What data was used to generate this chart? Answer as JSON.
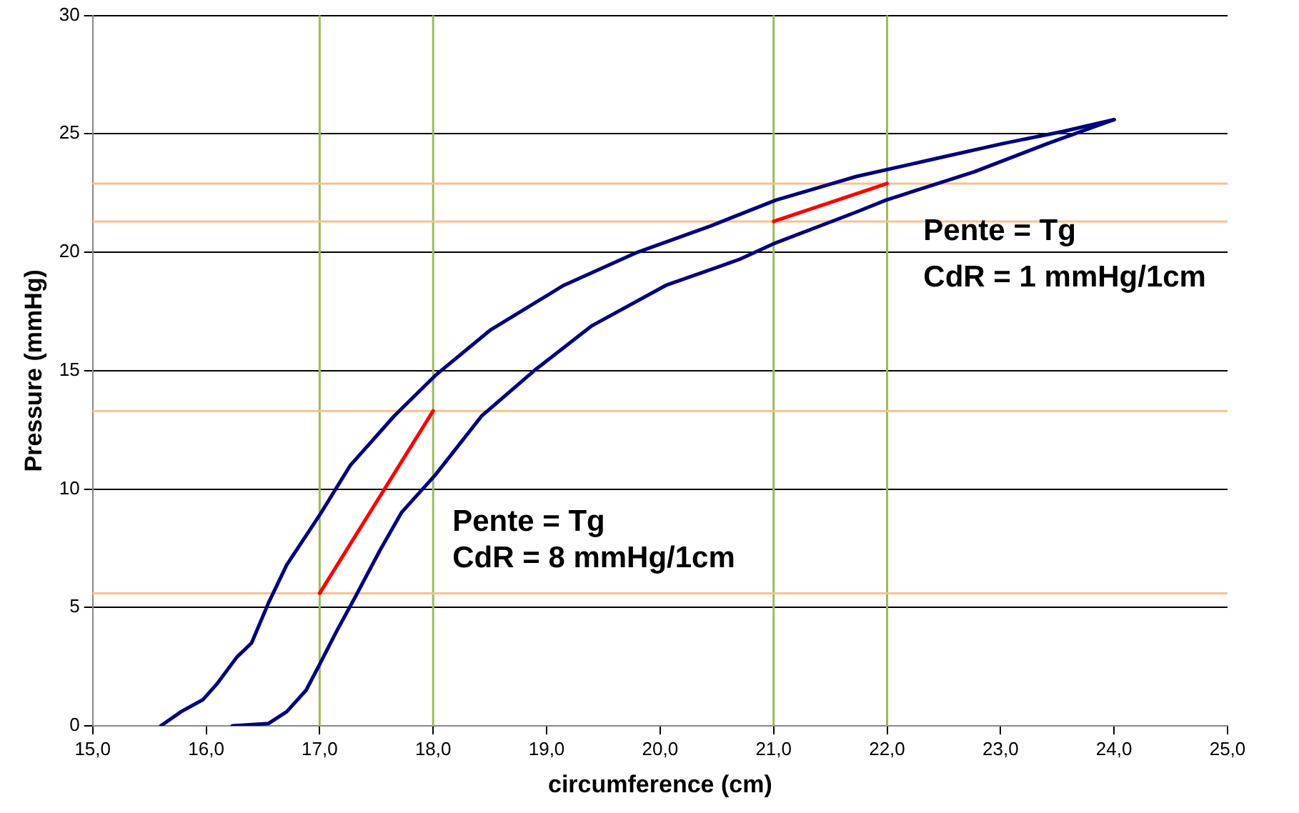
{
  "chart_data": {
    "type": "line",
    "xlabel": "circumference (cm)",
    "ylabel": "Pressure (mmHg)",
    "xlim": [
      15,
      25
    ],
    "xticks": [
      {
        "value": 15,
        "label": "15,0"
      },
      {
        "value": 16,
        "label": "16,0"
      },
      {
        "value": 17,
        "label": "17,0"
      },
      {
        "value": 18,
        "label": "18,0"
      },
      {
        "value": 19,
        "label": "19,0"
      },
      {
        "value": 20,
        "label": "20,0"
      },
      {
        "value": 21,
        "label": "21,0"
      },
      {
        "value": 22,
        "label": "22,0"
      },
      {
        "value": 23,
        "label": "23,0"
      },
      {
        "value": 24,
        "label": "24,0"
      },
      {
        "value": 25,
        "label": "25,0"
      }
    ],
    "ylim": [
      0,
      30
    ],
    "yticks": [
      0,
      5,
      10,
      15,
      20,
      25,
      30
    ],
    "grid": "y",
    "legend": false,
    "marker": "none",
    "series": [
      {
        "color": "#000080",
        "x": [
          15.6,
          15.78,
          15.97,
          16.1,
          16.27,
          16.4,
          16.55,
          16.71,
          17.0,
          17.27,
          17.66,
          18.02,
          18.5,
          19.15,
          19.8,
          20.44,
          21.02,
          21.73,
          22.38,
          23.03,
          23.55,
          24.0
        ],
        "values": [
          0,
          0.6,
          1.1,
          1.8,
          2.9,
          3.5,
          5.2,
          6.8,
          8.9,
          11.0,
          13.1,
          14.8,
          16.7,
          18.6,
          20.0,
          21.1,
          22.2,
          23.2,
          23.9,
          24.6,
          25.1,
          25.6
        ]
      },
      {
        "color": "#000080",
        "x": [
          16.23,
          16.55,
          16.71,
          16.88,
          17.0,
          17.15,
          17.32,
          17.53,
          17.72,
          18.02,
          18.43,
          18.89,
          19.4,
          20.05,
          20.7,
          21.02,
          21.73,
          21.99,
          22.77,
          23.42,
          24.0
        ],
        "values": [
          0,
          0.1,
          0.6,
          1.5,
          2.6,
          4.0,
          5.5,
          7.4,
          9.0,
          10.6,
          13.1,
          15.0,
          16.9,
          18.6,
          19.7,
          20.4,
          21.7,
          22.2,
          23.4,
          24.6,
          25.6
        ]
      },
      {
        "color": "#ff0000",
        "x": [
          17,
          18
        ],
        "values": [
          5.6,
          13.3
        ]
      },
      {
        "color": "#ff0000",
        "x": [
          21,
          22
        ],
        "values": [
          21.3,
          22.9
        ]
      }
    ],
    "ref_lines": [
      {
        "axis": "x",
        "value": 17,
        "color": "#9bbb59"
      },
      {
        "axis": "x",
        "value": 18,
        "color": "#9bbb59"
      },
      {
        "axis": "x",
        "value": 21,
        "color": "#9bbb59"
      },
      {
        "axis": "x",
        "value": 22,
        "color": "#9bbb59"
      },
      {
        "axis": "y",
        "value": 5.6,
        "color": "#fac090"
      },
      {
        "axis": "y",
        "value": 13.3,
        "color": "#fac090"
      },
      {
        "axis": "y",
        "value": 21.3,
        "color": "#fac090"
      },
      {
        "axis": "y",
        "value": 22.9,
        "color": "#fac090"
      }
    ],
    "annotations": [
      "Pente = Tg",
      "CdR = 8 mmHg/1cm",
      "Pente = Tg",
      "CdR = 1 mmHg/1cm"
    ]
  }
}
